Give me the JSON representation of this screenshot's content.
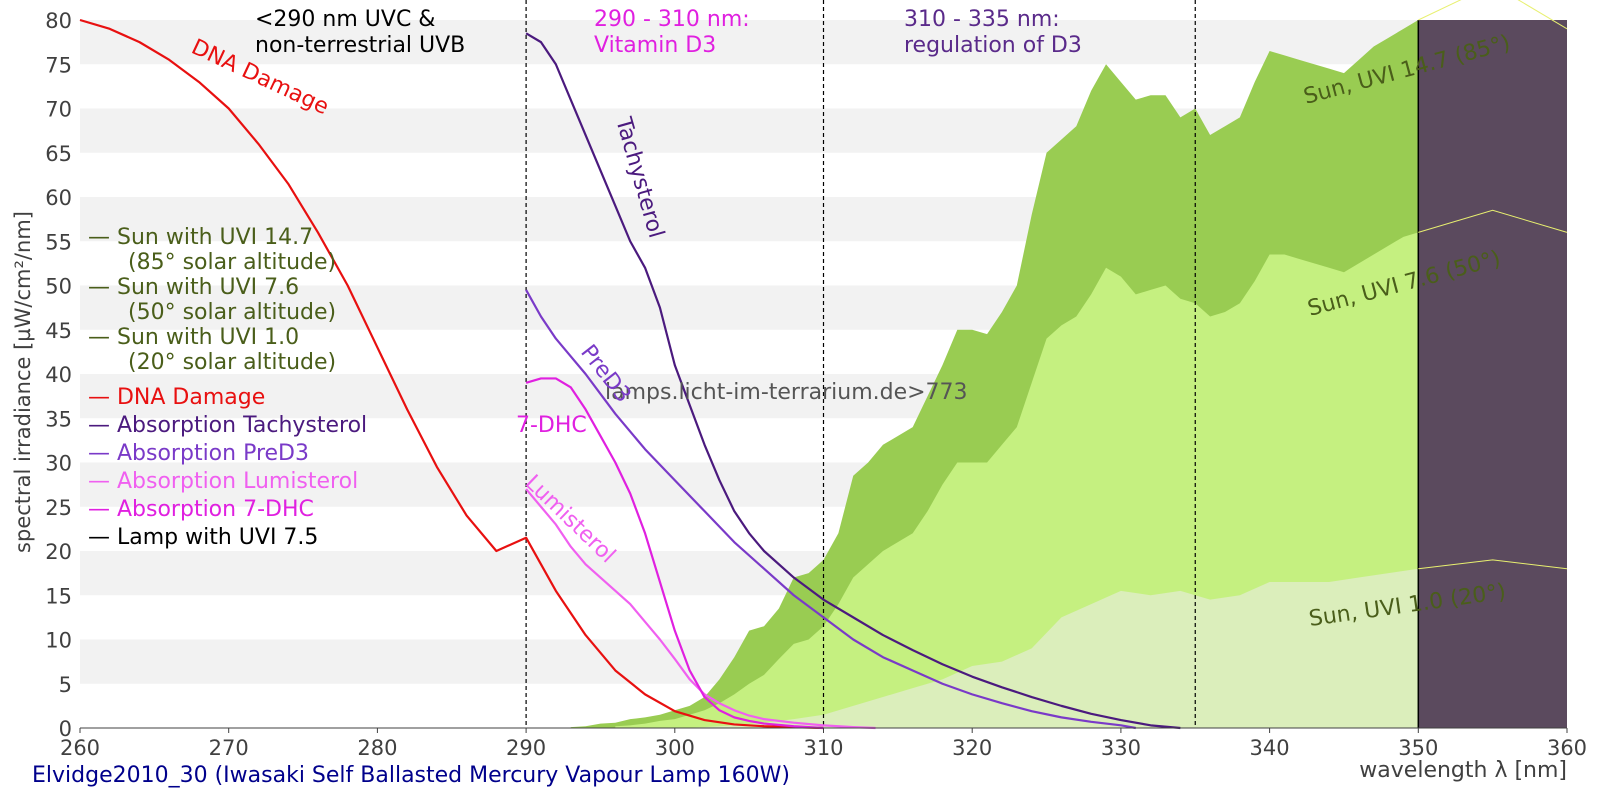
{
  "chart_data": {
    "type": "area",
    "title": "",
    "caption": "Elvidge2010_30 (Iwasaki Self Ballasted Mercury Vapour Lamp 160W)",
    "watermark": "lamps.licht-im-terrarium.de>773",
    "xlabel": "wavelength λ [nm]",
    "ylabel": "spectral irradiance [µW/cm²/nm]",
    "xlim": [
      260,
      360
    ],
    "ylim": [
      0,
      80
    ],
    "xticks": [
      "260",
      "270",
      "280",
      "290",
      "300",
      "310",
      "320",
      "330",
      "340",
      "350",
      "360"
    ],
    "yticks": [
      "0",
      "5",
      "10",
      "15",
      "20",
      "25",
      "30",
      "35",
      "40",
      "45",
      "50",
      "55",
      "60",
      "65",
      "70",
      "75",
      "80"
    ],
    "region_lines": [
      290,
      310,
      335
    ],
    "region_labels": [
      {
        "lines": [
          "<290 nm UVC &",
          "non-terrestrial UVB"
        ],
        "color": "#000000"
      },
      {
        "lines": [
          "290 - 310 nm:",
          "Vitamin D3"
        ],
        "color": "#e020e0"
      },
      {
        "lines": [
          "310 - 335 nm:",
          "regulation of D3"
        ],
        "color": "#5a2a8a"
      }
    ],
    "sun_areas": [
      {
        "name": "Sun, UVI 14.7 (85°)",
        "color": "#99cc52",
        "x": [
          293,
          294,
          295,
          296,
          297,
          298,
          299,
          300,
          301,
          302,
          303,
          304,
          305,
          306,
          307,
          308,
          309,
          310,
          311,
          312,
          313,
          314,
          315,
          316,
          317,
          318,
          319,
          320,
          321,
          322,
          323,
          324,
          325,
          326,
          327,
          328,
          329,
          330,
          331,
          332,
          333,
          334,
          335,
          336,
          337,
          338,
          339,
          340,
          341,
          342,
          343,
          344,
          345,
          346,
          347,
          348,
          349,
          350
        ],
        "y": [
          0.1,
          0.2,
          0.5,
          0.6,
          1.0,
          1.2,
          1.5,
          2.0,
          2.5,
          3.5,
          5.5,
          8.0,
          11.0,
          11.5,
          13.5,
          17.0,
          17.5,
          19.0,
          22.0,
          28.5,
          30.0,
          32.0,
          33.0,
          34.0,
          37.5,
          41.0,
          45.0,
          45.0,
          44.5,
          47.0,
          50.0,
          58.0,
          65.0,
          66.5,
          68.0,
          72.0,
          75.0,
          73.0,
          71.0,
          71.5,
          71.5,
          69.0,
          70.0,
          67.0,
          68.0,
          69.0,
          73.0,
          76.5,
          76.0,
          75.5,
          75.0,
          74.5,
          74.0,
          75.5,
          77.0,
          78.0,
          79.0,
          80.0
        ]
      },
      {
        "name": "Sun, UVI 7.6 (50°)",
        "color": "#c5f080",
        "x": [
          296,
          297,
          298,
          299,
          300,
          301,
          302,
          303,
          304,
          305,
          306,
          307,
          308,
          309,
          310,
          311,
          312,
          313,
          314,
          315,
          316,
          317,
          318,
          319,
          320,
          321,
          322,
          323,
          324,
          325,
          326,
          327,
          328,
          329,
          330,
          331,
          332,
          333,
          334,
          335,
          336,
          337,
          338,
          339,
          340,
          341,
          342,
          343,
          344,
          345,
          346,
          347,
          348,
          349,
          350
        ],
        "y": [
          0.2,
          0.3,
          0.5,
          0.8,
          1.0,
          1.5,
          2.0,
          2.8,
          3.8,
          5.0,
          6.0,
          7.8,
          9.5,
          10.0,
          11.5,
          14.0,
          17.0,
          18.5,
          20.0,
          21.0,
          22.0,
          24.5,
          27.5,
          30.0,
          30.0,
          30.0,
          32.0,
          34.0,
          39.0,
          44.0,
          45.5,
          46.5,
          49.0,
          52.0,
          51.0,
          49.0,
          49.5,
          50.0,
          48.5,
          48.0,
          46.5,
          47.0,
          48.0,
          50.5,
          53.5,
          53.5,
          53.0,
          52.5,
          52.0,
          51.5,
          52.5,
          53.5,
          54.5,
          55.5,
          56.0
        ]
      },
      {
        "name": "Sun, UVI 1.0 (20°)",
        "color": "#dbeebb",
        "x": [
          300,
          302,
          304,
          306,
          308,
          310,
          312,
          314,
          316,
          318,
          320,
          322,
          324,
          326,
          328,
          330,
          332,
          334,
          336,
          338,
          340,
          342,
          344,
          346,
          348,
          350
        ],
        "y": [
          0.0,
          0.1,
          0.3,
          0.6,
          1.0,
          1.5,
          2.5,
          3.5,
          4.5,
          5.5,
          7.0,
          7.5,
          9.0,
          12.5,
          14.0,
          15.5,
          15.0,
          15.5,
          14.5,
          15.0,
          16.5,
          16.5,
          16.5,
          17.0,
          17.5,
          18.0
        ]
      }
    ],
    "lamp_block": {
      "name": "Lamp with UVI 7.5",
      "x_start": 350,
      "x_end": 360,
      "color": "#5b4a5e"
    },
    "sun_labels": [
      "Sun, UVI 14.7 (85°)",
      "Sun, UVI 7.6 (50°)",
      "Sun, UVI 1.0 (20°)"
    ],
    "series": [
      {
        "name": "DNA Damage",
        "label": "DNA Damage",
        "color": "#e81010",
        "x": [
          260,
          262,
          264,
          266,
          268,
          270,
          272,
          274,
          276,
          278,
          280,
          282,
          284,
          286,
          288,
          290,
          292,
          294,
          296,
          298,
          300,
          302,
          304,
          306,
          308,
          310
        ],
        "y": [
          80.0,
          79.0,
          77.5,
          75.5,
          73.0,
          70.0,
          66.0,
          61.5,
          56.0,
          50.0,
          43.0,
          36.0,
          29.5,
          24.0,
          20.0,
          21.5,
          15.5,
          10.5,
          6.5,
          3.8,
          1.9,
          0.9,
          0.4,
          0.2,
          0.1,
          0.0
        ]
      },
      {
        "name": "Absorption Tachysterol",
        "label": "Tachysterol",
        "color": "#4b1a7e",
        "x": [
          290,
          291,
          292,
          293,
          294,
          295,
          296,
          297,
          298,
          299,
          300,
          301,
          302,
          303,
          304,
          305,
          306,
          308,
          310,
          312,
          314,
          316,
          318,
          320,
          322,
          324,
          326,
          328,
          330,
          332,
          334
        ],
        "y": [
          78.5,
          77.5,
          75.0,
          71.0,
          67.0,
          63.0,
          59.0,
          55.0,
          52.0,
          47.5,
          41.0,
          36.5,
          32.0,
          28.0,
          24.5,
          22.0,
          20.0,
          17.0,
          14.5,
          12.5,
          10.5,
          8.8,
          7.2,
          5.8,
          4.6,
          3.5,
          2.5,
          1.6,
          0.9,
          0.3,
          0.0
        ]
      },
      {
        "name": "Absorption PreD3",
        "label": "PreD3",
        "color": "#7a3ac8",
        "x": [
          290,
          291,
          292,
          293,
          294,
          296,
          298,
          300,
          302,
          304,
          306,
          308,
          310,
          312,
          314,
          316,
          318,
          320,
          322,
          324,
          326,
          328,
          330,
          331
        ],
        "y": [
          49.5,
          46.5,
          44.0,
          42.0,
          40.0,
          35.5,
          31.5,
          28.0,
          24.5,
          21.0,
          18.0,
          15.0,
          12.5,
          10.0,
          8.0,
          6.5,
          5.0,
          3.8,
          2.8,
          1.9,
          1.2,
          0.7,
          0.3,
          0.0
        ]
      },
      {
        "name": "Absorption Lumisterol",
        "label": "Lumisterol",
        "color": "#f060f0",
        "x": [
          290,
          291,
          292,
          293,
          294,
          295,
          296,
          297,
          298,
          299,
          300,
          301,
          302,
          303,
          304,
          305,
          306,
          308,
          310,
          312,
          313.5
        ],
        "y": [
          27.0,
          25.0,
          23.0,
          20.5,
          18.5,
          17.0,
          15.5,
          14.0,
          12.0,
          10.0,
          7.8,
          5.5,
          3.8,
          2.8,
          2.0,
          1.4,
          1.0,
          0.6,
          0.3,
          0.1,
          0.0
        ]
      },
      {
        "name": "Absorption 7-DHC",
        "label": "7-DHC",
        "color": "#e020e0",
        "x": [
          290,
          291,
          292,
          293,
          294,
          295,
          296,
          297,
          298,
          299,
          300,
          301,
          302,
          303,
          304,
          305,
          306,
          308,
          310
        ],
        "y": [
          39.0,
          39.5,
          39.5,
          38.5,
          36.0,
          33.0,
          30.0,
          26.5,
          22.0,
          16.5,
          11.0,
          6.5,
          3.5,
          2.0,
          1.2,
          0.8,
          0.5,
          0.2,
          0.0
        ]
      }
    ],
    "legend": {
      "placement": "left",
      "entries": [
        {
          "lines": [
            "— Sun with UVI 14.7",
            "(85° solar altitude)"
          ],
          "color": "#4a5e1a"
        },
        {
          "lines": [
            "— Sun with UVI 7.6",
            "(50° solar altitude)"
          ],
          "color": "#4a5e1a"
        },
        {
          "lines": [
            "— Sun with UVI 1.0",
            "(20° solar altitude)"
          ],
          "color": "#4a5e1a"
        },
        {
          "lines": [
            "— DNA Damage"
          ],
          "color": "#e81010"
        },
        {
          "lines": [
            "— Absorption Tachysterol"
          ],
          "color": "#4b1a7e"
        },
        {
          "lines": [
            "— Absorption PreD3"
          ],
          "color": "#7a3ac8"
        },
        {
          "lines": [
            "— Absorption Lumisterol"
          ],
          "color": "#f060f0"
        },
        {
          "lines": [
            "— Absorption 7-DHC"
          ],
          "color": "#e020e0"
        },
        {
          "lines": [
            "— Lamp with UVI 7.5"
          ],
          "color": "#000000"
        }
      ]
    },
    "colors": {
      "band": "#f2f2f2",
      "axis_text": "#404040",
      "caption": "#00008b",
      "watermark": "#555555",
      "sun_label": "#4a5e1a",
      "bin_line": "#e8f070"
    }
  }
}
